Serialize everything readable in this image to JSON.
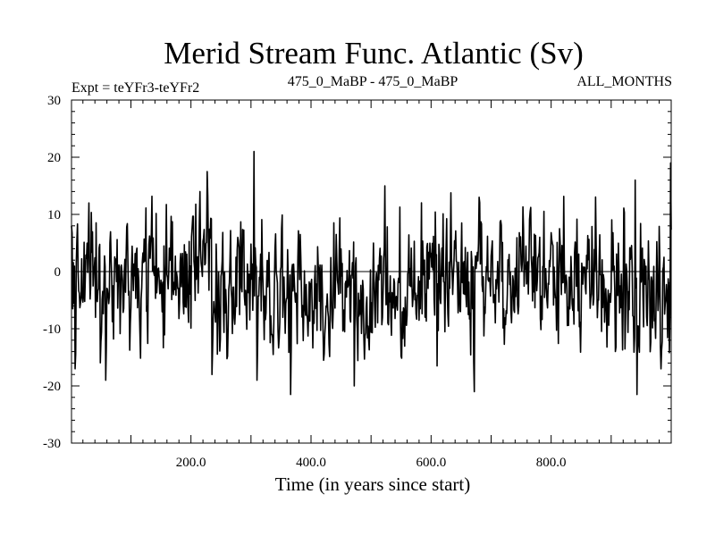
{
  "chart_data": {
    "type": "line",
    "title": "Merid Stream Func. Atlantic (Sv)",
    "subtitle_left": "Expt = teYFr3-teYFr2",
    "subtitle_center": "475_0_MaBP - 475_0_MaBP",
    "subtitle_right": "ALL_MONTHS",
    "xlabel": "Time (in years since start)",
    "ylabel": "",
    "xlim": [
      1,
      1000
    ],
    "ylim": [
      -30,
      30
    ],
    "xticks": [
      200,
      400,
      600,
      800
    ],
    "xtick_labels": [
      "200.0",
      "400.0",
      "600.0",
      "800.0"
    ],
    "yticks": [
      -30,
      -20,
      -10,
      0,
      10,
      20,
      30
    ],
    "ytick_labels": [
      "-30",
      "-20",
      "-10",
      "0",
      "10",
      "20",
      "30"
    ],
    "grid": false,
    "zero_line": true,
    "line_color": "#000000",
    "peaks": [
      {
        "x": 1,
        "y": 8
      },
      {
        "x": 7,
        "y": -17
      },
      {
        "x": 30,
        "y": 12
      },
      {
        "x": 58,
        "y": -19
      },
      {
        "x": 215,
        "y": 14
      },
      {
        "x": 227,
        "y": 17.5
      },
      {
        "x": 235,
        "y": -18
      },
      {
        "x": 305,
        "y": 21
      },
      {
        "x": 310,
        "y": -19
      },
      {
        "x": 366,
        "y": -21.5
      },
      {
        "x": 472,
        "y": -20
      },
      {
        "x": 523,
        "y": 15
      },
      {
        "x": 610,
        "y": -16.5
      },
      {
        "x": 672,
        "y": -21
      },
      {
        "x": 680,
        "y": 13
      },
      {
        "x": 940,
        "y": 16
      },
      {
        "x": 943,
        "y": -21.5
      },
      {
        "x": 983,
        "y": -17
      },
      {
        "x": 999,
        "y": 19
      }
    ]
  }
}
